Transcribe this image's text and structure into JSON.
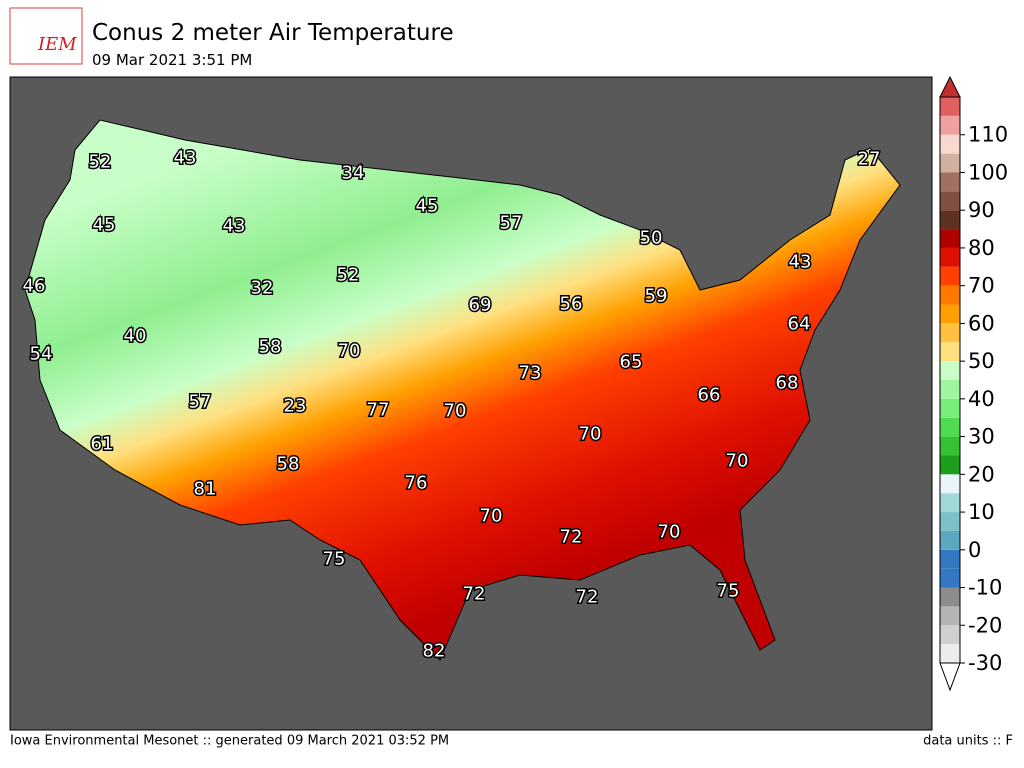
{
  "header": {
    "title": "Conus 2 meter Air Temperature",
    "subtitle": "09 Mar 2021 3:51 PM",
    "logo": "IEM"
  },
  "map": {
    "labels": [
      52,
      43,
      34,
      27,
      45,
      43,
      45,
      57,
      50,
      43,
      46,
      32,
      52,
      69,
      56,
      59,
      64,
      40,
      58,
      70,
      54,
      73,
      65,
      68,
      57,
      23,
      77,
      70,
      66,
      61,
      70,
      70,
      58,
      76,
      81,
      70,
      72,
      70,
      75,
      72,
      72,
      75,
      82
    ]
  },
  "colorbar": {
    "lim": [
      -30,
      120
    ],
    "ticks": [
      -30,
      -20,
      -10,
      0,
      10,
      20,
      30,
      40,
      50,
      60,
      70,
      80,
      90,
      100,
      110
    ],
    "colors": [
      "#ececec",
      "#d0d0d0",
      "#b4b4b4",
      "#8c8c8c",
      "#3478c4",
      "#3478c4",
      "#5aa8c0",
      "#7cc0c8",
      "#a0d8d8",
      "#e8f4f8",
      "#1e9e1e",
      "#34c234",
      "#50dc50",
      "#78ee78",
      "#a0f5a0",
      "#c8ffc8",
      "#ffe080",
      "#ffc040",
      "#ffa000",
      "#ff7800",
      "#ff4000",
      "#e01000",
      "#b00000",
      "#603020",
      "#805040",
      "#a07060",
      "#d0b0a0",
      "#f8d8d0",
      "#f0a0a0",
      "#e06060"
    ],
    "over_color": "#c03030",
    "under_color": "#ffffff"
  },
  "footer": {
    "left": "Iowa Environmental Mesonet :: generated 09 March 2021 03:52 PM",
    "right": "data units :: F"
  }
}
